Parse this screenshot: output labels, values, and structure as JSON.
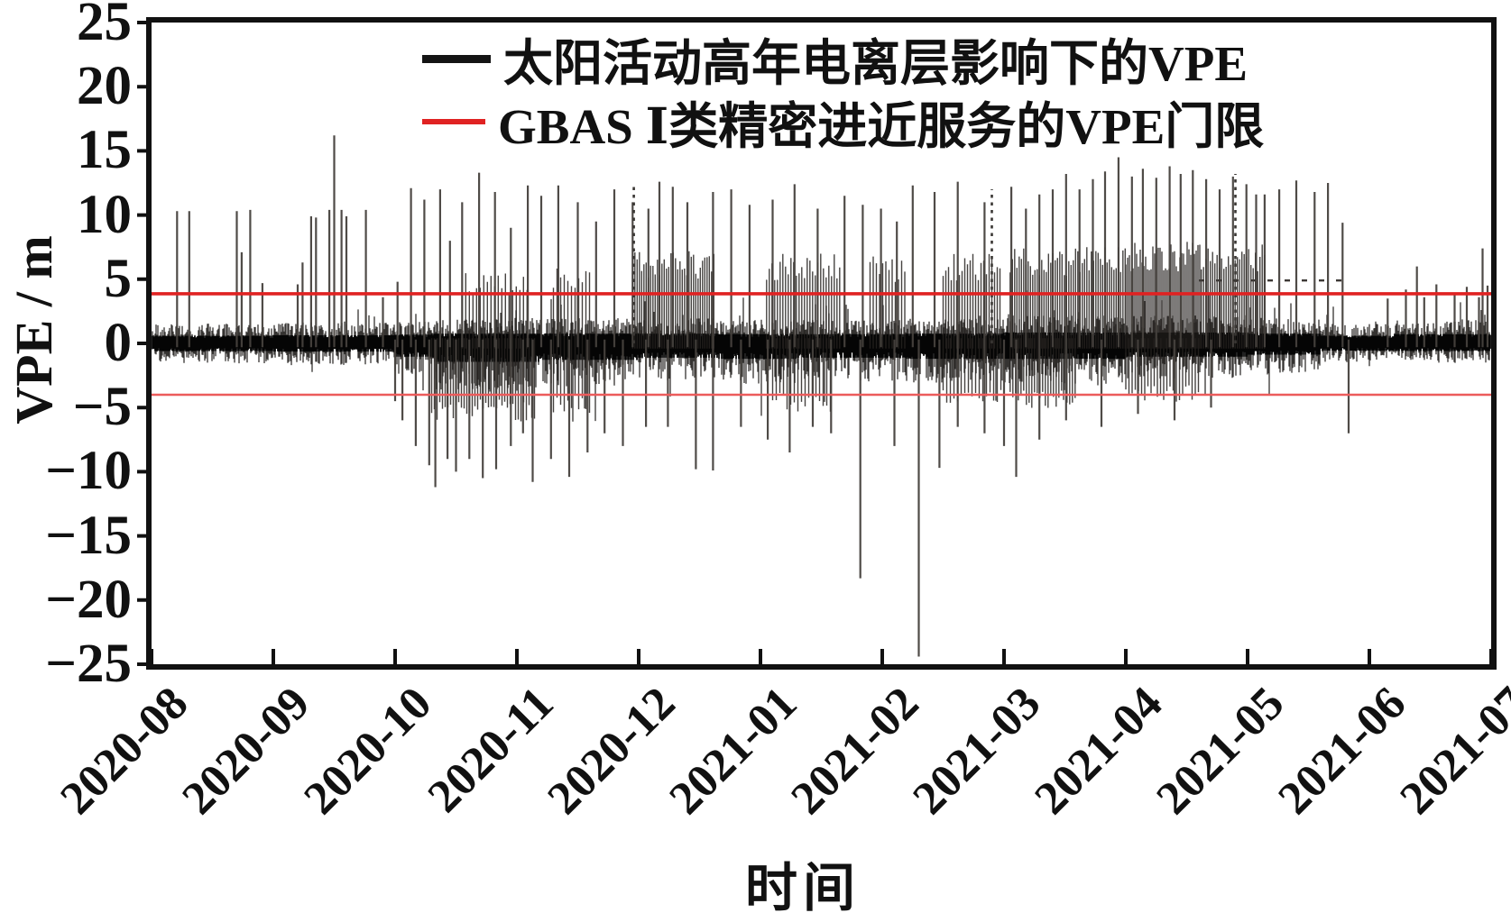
{
  "axes": {
    "x_title": "时间",
    "y_title": "VPE / m"
  },
  "legend": {
    "items": [
      {
        "label": "太阳活动高年电离层影响下的VPE",
        "color": "#141414",
        "swatch": "thick-black-line"
      },
      {
        "label": "GBAS Ⅰ类精密进近服务的VPE门限",
        "color": "#e02222",
        "swatch": "red-line"
      }
    ]
  },
  "chart_data": {
    "type": "line",
    "title": "",
    "xlabel": "时间",
    "ylabel": "VPE / m",
    "ylim": [
      -25,
      25
    ],
    "y_tick_step": 5,
    "y_tick_labels": [
      "25",
      "20",
      "15",
      "10",
      "5",
      "0",
      "−5",
      "−10",
      "−15",
      "−20",
      "−25"
    ],
    "x_categories": [
      "2020-08",
      "2020-09",
      "2020-10",
      "2020-11",
      "2020-12",
      "2021-01",
      "2021-02",
      "2021-03",
      "2021-04",
      "2021-05",
      "2021-06",
      "2021-07"
    ],
    "grid": false,
    "legend_position": "upper center inside",
    "series": [
      {
        "name": "太阳活动高年电离层影响下的VPE",
        "type": "noisy-signal",
        "color": "#141414"
      },
      {
        "name": "GBAS Ⅰ类精密进近服务的VPE门限",
        "type": "threshold",
        "color": "#e02222",
        "upper_value": 4,
        "lower_value": -4
      }
    ],
    "threshold_vpe_m": 4,
    "noise_band_by_month": [
      [
        0.0,
        1.0,
        1.4,
        1.5
      ],
      [
        1.0,
        2.0,
        1.5,
        1.6
      ],
      [
        2.0,
        2.3,
        1.6,
        2.6
      ],
      [
        2.3,
        3.2,
        1.8,
        3.6
      ],
      [
        3.2,
        4.0,
        1.8,
        3.2
      ],
      [
        4.0,
        4.65,
        1.8,
        2.8
      ],
      [
        4.65,
        5.3,
        1.7,
        3.0
      ],
      [
        5.3,
        6.2,
        1.7,
        2.8
      ],
      [
        6.2,
        7.0,
        1.8,
        3.0
      ],
      [
        7.0,
        8.0,
        2.0,
        3.0
      ],
      [
        8.0,
        9.0,
        2.0,
        2.6
      ],
      [
        9.0,
        9.6,
        1.8,
        2.2
      ],
      [
        9.6,
        10.2,
        1.4,
        1.4
      ],
      [
        10.2,
        11.0,
        1.7,
        1.5
      ]
    ],
    "spikes": [
      [
        0.21,
        10.3
      ],
      [
        0.31,
        10.3
      ],
      [
        0.7,
        10.3
      ],
      [
        0.74,
        7.1
      ],
      [
        0.81,
        10.4
      ],
      [
        0.91,
        4.7
      ],
      [
        1.2,
        4.6
      ],
      [
        1.24,
        6.3
      ],
      [
        1.31,
        9.9
      ],
      [
        1.35,
        9.8
      ],
      [
        1.46,
        10.4
      ],
      [
        1.5,
        16.2
      ],
      [
        1.56,
        10.4
      ],
      [
        1.6,
        9.9
      ],
      [
        1.76,
        10.4
      ],
      [
        1.9,
        3.6
      ],
      [
        2.02,
        4.8
      ],
      [
        2.13,
        12.1
      ],
      [
        2.24,
        11.2
      ],
      [
        2.37,
        12.0
      ],
      [
        2.45,
        8.0
      ],
      [
        2.55,
        11.0
      ],
      [
        2.69,
        13.3
      ],
      [
        2.82,
        11.8
      ],
      [
        2.95,
        9.0
      ],
      [
        3.09,
        12.3
      ],
      [
        3.2,
        11.5
      ],
      [
        3.34,
        12.3
      ],
      [
        3.5,
        11.0
      ],
      [
        3.65,
        9.5
      ],
      [
        3.8,
        12.0
      ],
      [
        3.95,
        11.0
      ],
      [
        4.08,
        10.5
      ],
      [
        4.17,
        12.6
      ],
      [
        4.28,
        12.2
      ],
      [
        4.4,
        11.0
      ],
      [
        4.61,
        11.8
      ],
      [
        4.76,
        12.0
      ],
      [
        4.91,
        10.8
      ],
      [
        5.1,
        11.2
      ],
      [
        5.28,
        12.4
      ],
      [
        5.47,
        10.5
      ],
      [
        5.69,
        11.5
      ],
      [
        5.84,
        10.8
      ],
      [
        5.99,
        10.5
      ],
      [
        6.12,
        9.5
      ],
      [
        6.25,
        12.3
      ],
      [
        6.43,
        11.8
      ],
      [
        6.62,
        12.6
      ],
      [
        6.84,
        11.0
      ],
      [
        7.06,
        12.2
      ],
      [
        7.18,
        10.5
      ],
      [
        7.29,
        11.6
      ],
      [
        7.4,
        12.0
      ],
      [
        7.51,
        13.2
      ],
      [
        7.62,
        12.0
      ],
      [
        7.73,
        12.8
      ],
      [
        7.83,
        13.4
      ],
      [
        7.94,
        14.5
      ],
      [
        8.05,
        13.0
      ],
      [
        8.14,
        13.6
      ],
      [
        8.25,
        12.9
      ],
      [
        8.36,
        13.8
      ],
      [
        8.45,
        13.2
      ],
      [
        8.55,
        13.5
      ],
      [
        8.66,
        12.8
      ],
      [
        8.77,
        12.0
      ],
      [
        8.88,
        13.0
      ],
      [
        8.99,
        12.4
      ],
      [
        9.07,
        11.6
      ],
      [
        9.14,
        11.6
      ],
      [
        9.26,
        12.0
      ],
      [
        9.4,
        12.7
      ],
      [
        9.55,
        11.8
      ],
      [
        9.66,
        12.5
      ],
      [
        9.78,
        9.4
      ],
      [
        10.15,
        3.5
      ],
      [
        10.3,
        4.2
      ],
      [
        10.39,
        6.0
      ],
      [
        10.45,
        3.6
      ],
      [
        10.55,
        4.6
      ],
      [
        10.7,
        3.8
      ],
      [
        10.8,
        4.4
      ],
      [
        10.9,
        3.6
      ],
      [
        10.93,
        7.4
      ],
      [
        10.97,
        4.5
      ],
      [
        2.0,
        -4.5
      ],
      [
        2.06,
        -6.0
      ],
      [
        2.17,
        -8.0
      ],
      [
        2.28,
        -9.5
      ],
      [
        2.33,
        -11.2
      ],
      [
        2.43,
        -9.0
      ],
      [
        2.5,
        -10.0
      ],
      [
        2.61,
        -9.0
      ],
      [
        2.72,
        -10.5
      ],
      [
        2.83,
        -9.8
      ],
      [
        2.95,
        -8.0
      ],
      [
        3.05,
        -7.0
      ],
      [
        3.13,
        -10.8
      ],
      [
        3.28,
        -9.0
      ],
      [
        3.43,
        -10.4
      ],
      [
        3.58,
        -8.5
      ],
      [
        3.72,
        -7.0
      ],
      [
        3.87,
        -8.0
      ],
      [
        4.06,
        -6.5
      ],
      [
        4.24,
        -6.5
      ],
      [
        4.47,
        -9.8
      ],
      [
        4.61,
        -9.9
      ],
      [
        4.84,
        -6.5
      ],
      [
        5.06,
        -7.5
      ],
      [
        5.24,
        -8.5
      ],
      [
        5.43,
        -6.5
      ],
      [
        5.58,
        -7.0
      ],
      [
        5.82,
        -18.3
      ],
      [
        6.1,
        -8.0
      ],
      [
        6.3,
        -24.4
      ],
      [
        6.47,
        -9.7
      ],
      [
        6.62,
        -6.5
      ],
      [
        6.84,
        -7.0
      ],
      [
        7.0,
        -8.0
      ],
      [
        7.1,
        -10.4
      ],
      [
        7.29,
        -7.5
      ],
      [
        7.51,
        -6.0
      ],
      [
        7.8,
        -6.5
      ],
      [
        8.1,
        -5.5
      ],
      [
        8.4,
        -6.0
      ],
      [
        8.7,
        -5.0
      ],
      [
        9.83,
        -7.0
      ]
    ],
    "dotted_spikes": [
      [
        3.96,
        12.3
      ],
      [
        6.9,
        12.0
      ],
      [
        8.9,
        13.2
      ]
    ],
    "dense_clusters": [
      [
        2.55,
        3.1,
        5.5,
        4
      ],
      [
        3.3,
        3.62,
        6.0,
        4
      ],
      [
        3.95,
        4.62,
        7.2,
        2.5
      ],
      [
        5.05,
        5.65,
        7.0,
        3
      ],
      [
        5.9,
        6.2,
        6.8,
        3.5
      ],
      [
        6.5,
        6.97,
        7.0,
        3
      ],
      [
        7.05,
        7.55,
        7.4,
        2.5
      ],
      [
        7.55,
        8.0,
        7.6,
        2.5
      ],
      [
        8.0,
        8.62,
        8.0,
        2
      ],
      [
        8.62,
        9.14,
        7.8,
        2.5
      ],
      [
        2.3,
        3.15,
        -6.2,
        3
      ],
      [
        3.3,
        3.6,
        -5.5,
        4
      ],
      [
        5.1,
        5.6,
        -5.5,
        4
      ],
      [
        6.5,
        7.0,
        -5.0,
        4
      ],
      [
        7.05,
        7.6,
        -5.2,
        3
      ],
      [
        8.0,
        8.6,
        -4.6,
        3.5
      ]
    ],
    "dash_marks": {
      "y": 4.9,
      "from": 8.6,
      "to": 9.78
    }
  }
}
